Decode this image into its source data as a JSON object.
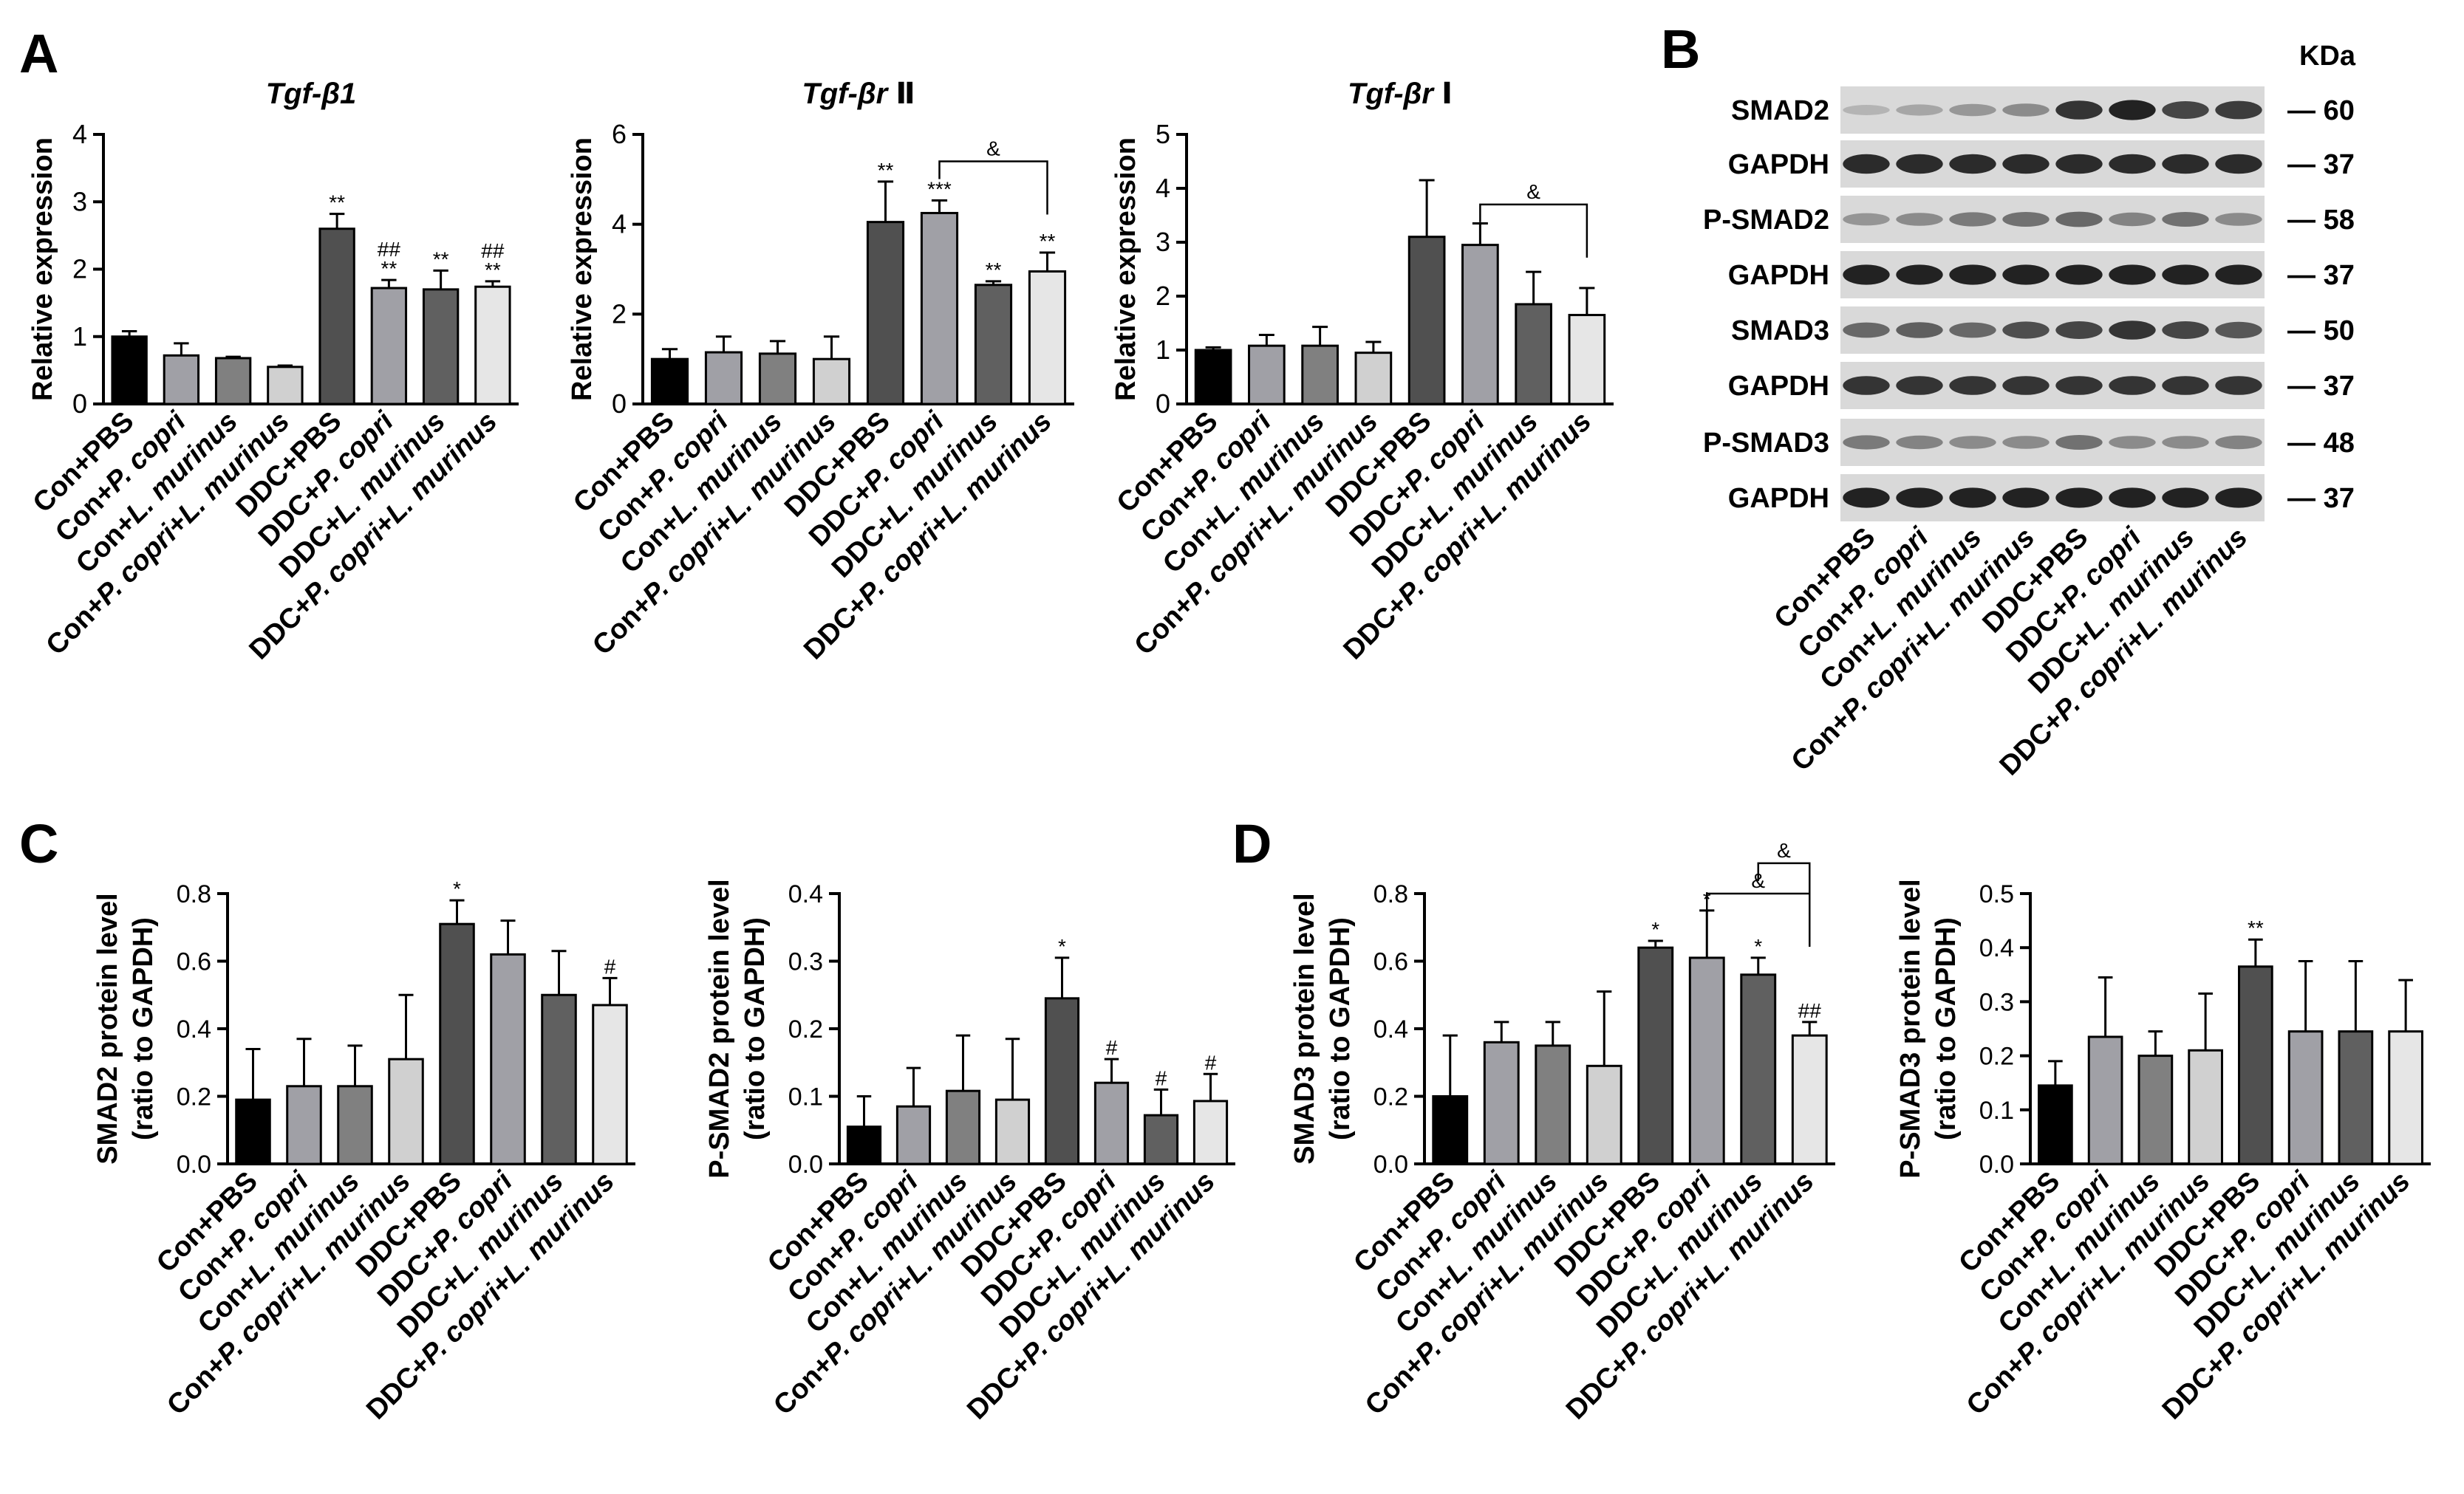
{
  "panel_letters": [
    "A",
    "B",
    "C",
    "D"
  ],
  "chart_data": [
    {
      "id": "tgfb1",
      "type": "bar",
      "title": "Tgf-β1",
      "ylabel": "Relative expression",
      "ylabel2": "",
      "ylim": [
        0,
        4
      ],
      "yticks": [
        "0",
        "1",
        "2",
        "3",
        "4"
      ],
      "categories": [
        "Con+PBS",
        "Con+P. copri",
        "Con+L. murinus",
        "Con+P. copri+L. murinus",
        "DDC+PBS",
        "DDC+P. copri",
        "DDC+L. murinus",
        "DDC+P. copri+L. murinus"
      ],
      "values": [
        1.0,
        0.72,
        0.68,
        0.55,
        2.6,
        1.72,
        1.7,
        1.74
      ],
      "errors": [
        0.08,
        0.18,
        0.02,
        0.02,
        0.22,
        0.12,
        0.28,
        0.08
      ],
      "annotations": [
        [],
        [],
        [],
        [],
        [
          "**"
        ],
        [
          "##",
          "**"
        ],
        [
          "**"
        ],
        [
          "##",
          "**"
        ]
      ],
      "brackets": []
    },
    {
      "id": "tgfbr2",
      "type": "bar",
      "title": "Tgf-βr Ⅱ",
      "ylabel": "Relative expression",
      "ylabel2": "",
      "ylim": [
        0,
        6
      ],
      "yticks": [
        "0",
        "2",
        "4",
        "6"
      ],
      "categories": [
        "Con+PBS",
        "Con+P. copri",
        "Con+L. murinus",
        "Con+P. copri+L. murinus",
        "DDC+PBS",
        "DDC+P. copri",
        "DDC+L. murinus",
        "DDC+P. copri+L. murinus"
      ],
      "values": [
        1.0,
        1.15,
        1.12,
        1.0,
        4.05,
        4.25,
        2.65,
        2.95
      ],
      "errors": [
        0.22,
        0.35,
        0.28,
        0.5,
        0.9,
        0.28,
        0.08,
        0.42
      ],
      "annotations": [
        [],
        [],
        [],
        [],
        [
          "**"
        ],
        [
          "***"
        ],
        [
          "**"
        ],
        [
          "**"
        ]
      ],
      "brackets": [
        {
          "from": 5,
          "to": 7,
          "level": 5.4,
          "label": "&"
        }
      ]
    },
    {
      "id": "tgfbr1",
      "type": "bar",
      "title": "Tgf-βr Ⅰ",
      "ylabel": "Relative expression",
      "ylabel2": "",
      "ylim": [
        0,
        5
      ],
      "yticks": [
        "0",
        "1",
        "2",
        "3",
        "4",
        "5"
      ],
      "categories": [
        "Con+PBS",
        "Con+P. copri",
        "Con+L. murinus",
        "Con+P. copri+L. murinus",
        "DDC+PBS",
        "DDC+P. copri",
        "DDC+L. murinus",
        "DDC+P. copri+L. murinus"
      ],
      "values": [
        1.0,
        1.08,
        1.08,
        0.95,
        3.1,
        2.95,
        1.85,
        1.65
      ],
      "errors": [
        0.05,
        0.2,
        0.35,
        0.2,
        1.05,
        0.4,
        0.6,
        0.5
      ],
      "annotations": [
        [],
        [],
        [],
        [],
        [],
        [],
        [],
        []
      ],
      "brackets": [
        {
          "from": 5,
          "to": 7,
          "level": 3.7,
          "label": "&"
        }
      ]
    },
    {
      "id": "smad2",
      "type": "bar",
      "title": "",
      "ylabel": "SMAD2 protein level",
      "ylabel2": "(ratio to GAPDH)",
      "ylim": [
        0,
        0.8
      ],
      "yticks": [
        "0.0",
        "0.2",
        "0.4",
        "0.6",
        "0.8"
      ],
      "categories": [
        "Con+PBS",
        "Con+P. copri",
        "Con+L. murinus",
        "Con+P. copri+L. murinus",
        "DDC+PBS",
        "DDC+P. copri",
        "DDC+L. murinus",
        "DDC+P. copri+L. murinus"
      ],
      "values": [
        0.19,
        0.23,
        0.23,
        0.31,
        0.71,
        0.62,
        0.5,
        0.47
      ],
      "errors": [
        0.15,
        0.14,
        0.12,
        0.19,
        0.07,
        0.1,
        0.13,
        0.08
      ],
      "annotations": [
        [],
        [],
        [],
        [],
        [
          "*"
        ],
        [],
        [],
        [
          "#"
        ]
      ],
      "brackets": []
    },
    {
      "id": "psmad2",
      "type": "bar",
      "title": "",
      "ylabel": "P-SMAD2 protein level",
      "ylabel2": "(ratio to GAPDH)",
      "ylim": [
        0,
        0.4
      ],
      "yticks": [
        "0.0",
        "0.1",
        "0.2",
        "0.3",
        "0.4"
      ],
      "categories": [
        "Con+PBS",
        "Con+P. copri",
        "Con+L. murinus",
        "Con+P. copri+L. murinus",
        "DDC+PBS",
        "DDC+P. copri",
        "DDC+L. murinus",
        "DDC+P. copri+L. murinus"
      ],
      "values": [
        0.055,
        0.085,
        0.108,
        0.095,
        0.245,
        0.12,
        0.072,
        0.093
      ],
      "errors": [
        0.045,
        0.057,
        0.082,
        0.09,
        0.06,
        0.035,
        0.038,
        0.04
      ],
      "annotations": [
        [],
        [],
        [],
        [],
        [
          "*"
        ],
        [
          "#"
        ],
        [
          "#"
        ],
        [
          "#"
        ]
      ],
      "brackets": []
    },
    {
      "id": "smad3",
      "type": "bar",
      "title": "",
      "ylabel": "SMAD3 protein level",
      "ylabel2": "(ratio to GAPDH)",
      "ylim": [
        0,
        0.8
      ],
      "yticks": [
        "0.0",
        "0.2",
        "0.4",
        "0.6",
        "0.8"
      ],
      "categories": [
        "Con+PBS",
        "Con+P. copri",
        "Con+L. murinus",
        "Con+P. copri+L. murinus",
        "DDC+PBS",
        "DDC+P. copri",
        "DDC+L. murinus",
        "DDC+P. copri+L. murinus"
      ],
      "values": [
        0.2,
        0.36,
        0.35,
        0.29,
        0.64,
        0.61,
        0.56,
        0.38
      ],
      "errors": [
        0.18,
        0.06,
        0.07,
        0.22,
        0.02,
        0.14,
        0.05,
        0.04
      ],
      "annotations": [
        [],
        [],
        [],
        [],
        [
          "*"
        ],
        [
          "*"
        ],
        [
          "*"
        ],
        [
          "##"
        ]
      ],
      "brackets": [
        {
          "from": 5,
          "to": 7,
          "level": 0.8,
          "label": "&"
        },
        {
          "from": 6,
          "to": 7,
          "level": 0.89,
          "label": "&"
        }
      ]
    },
    {
      "id": "psmad3",
      "type": "bar",
      "title": "",
      "ylabel": "P-SMAD3 protein level",
      "ylabel2": "(ratio to GAPDH)",
      "ylim": [
        0,
        0.5
      ],
      "yticks": [
        "0.0",
        "0.1",
        "0.2",
        "0.3",
        "0.4",
        "0.5"
      ],
      "categories": [
        "Con+PBS",
        "Con+P. copri",
        "Con+L. murinus",
        "Con+P. copri+L. murinus",
        "DDC+PBS",
        "DDC+P. copri",
        "DDC+L. murinus",
        "DDC+P. copri+L. murinus"
      ],
      "values": [
        0.145,
        0.235,
        0.2,
        0.21,
        0.365,
        0.245,
        0.245,
        0.245
      ],
      "errors": [
        0.045,
        0.11,
        0.045,
        0.105,
        0.05,
        0.13,
        0.13,
        0.095
      ],
      "annotations": [
        [],
        [],
        [],
        [],
        [
          "**"
        ],
        [],
        [],
        []
      ],
      "brackets": []
    }
  ],
  "blot": {
    "kda_header": "KDa",
    "rows": [
      {
        "label": "SMAD2",
        "kda": "60",
        "intensity": [
          0.12,
          0.2,
          0.28,
          0.35,
          0.85,
          0.95,
          0.75,
          0.8
        ]
      },
      {
        "label": "GAPDH",
        "kda": "37",
        "intensity": [
          0.9,
          0.9,
          0.9,
          0.9,
          0.9,
          0.9,
          0.9,
          0.9
        ]
      },
      {
        "label": "P-SMAD2",
        "kda": "58",
        "intensity": [
          0.3,
          0.35,
          0.45,
          0.5,
          0.55,
          0.4,
          0.5,
          0.35
        ]
      },
      {
        "label": "GAPDH",
        "kda": "37",
        "intensity": [
          0.95,
          0.95,
          0.95,
          0.95,
          0.95,
          0.95,
          0.95,
          0.95
        ]
      },
      {
        "label": "SMAD3",
        "kda": "50",
        "intensity": [
          0.55,
          0.6,
          0.55,
          0.7,
          0.75,
          0.85,
          0.75,
          0.65
        ]
      },
      {
        "label": "GAPDH",
        "kda": "37",
        "intensity": [
          0.85,
          0.85,
          0.85,
          0.85,
          0.85,
          0.85,
          0.85,
          0.85
        ]
      },
      {
        "label": "P-SMAD3",
        "kda": "48",
        "intensity": [
          0.45,
          0.4,
          0.35,
          0.35,
          0.5,
          0.35,
          0.35,
          0.4
        ]
      },
      {
        "label": "GAPDH",
        "kda": "37",
        "intensity": [
          0.95,
          0.95,
          0.95,
          0.95,
          0.95,
          0.95,
          0.95,
          0.95
        ]
      }
    ],
    "lanes": [
      "Con+PBS",
      "Con+P. copri",
      "Con+L. murinus",
      "Con+P. copri+L. murinus",
      "DDC+PBS",
      "DDC+P. copri",
      "DDC+L. murinus",
      "DDC+P. copri+L. murinus"
    ]
  },
  "bar_colors": [
    "#000000",
    "#a0a0a6",
    "#808080",
    "#d0d0d0",
    "#505050",
    "#a0a0a6",
    "#606060",
    "#e6e6e6"
  ]
}
